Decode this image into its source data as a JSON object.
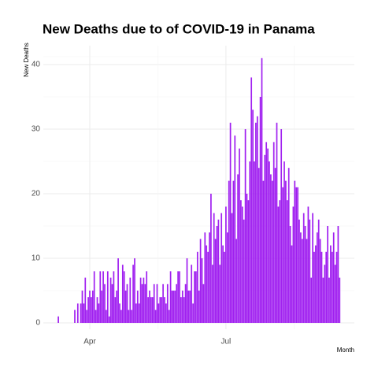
{
  "chart_data": {
    "type": "bar",
    "title": "New Deaths due to of COVID-19 in Panama",
    "x_label": "Month",
    "y_label": "New Deaths",
    "color": "#a020f0",
    "grid": true,
    "ylim": [
      0,
      40
    ],
    "yticks": [
      0,
      10,
      20,
      30,
      40
    ],
    "categories": [
      null,
      null,
      null,
      null,
      null,
      null,
      null,
      null,
      null,
      null,
      null,
      null,
      null,
      null,
      null,
      null,
      null,
      null,
      null,
      null,
      null,
      null,
      "Apr",
      null,
      null,
      null,
      null,
      null,
      null,
      null,
      null,
      null,
      null,
      null,
      null,
      null,
      null,
      null,
      null,
      null,
      null,
      null,
      null,
      null,
      null,
      null,
      null,
      null,
      null,
      null,
      null,
      null,
      null,
      null,
      null,
      null,
      null,
      null,
      null,
      null,
      null,
      null,
      null,
      null,
      null,
      null,
      null,
      null,
      null,
      null,
      null,
      null,
      null,
      null,
      null,
      null,
      null,
      null,
      null,
      null,
      null,
      null,
      null,
      null,
      null,
      null,
      null,
      null,
      null,
      null,
      null,
      null,
      null,
      null,
      null,
      null,
      null,
      null,
      null,
      null,
      null,
      null,
      null,
      null,
      null,
      null,
      null,
      null,
      null,
      null,
      null,
      null,
      null,
      "Jul",
      null,
      null,
      null,
      null,
      null,
      null,
      null,
      null,
      null,
      null,
      null,
      null,
      null,
      null,
      null,
      null,
      null,
      null,
      null,
      null,
      null,
      null,
      null,
      null,
      null,
      null,
      null,
      null,
      null,
      null,
      null,
      null,
      null,
      null,
      null,
      null,
      null,
      null,
      null,
      null,
      null,
      null,
      null,
      null,
      null,
      null,
      null,
      null,
      null,
      null,
      null,
      null,
      null,
      null,
      null,
      null,
      null,
      null,
      null,
      null,
      null,
      null,
      null,
      null,
      null,
      null,
      null,
      null,
      null,
      null,
      null,
      null,
      null,
      null,
      null,
      null
    ],
    "values": [
      0,
      1,
      0,
      0,
      0,
      0,
      0,
      0,
      0,
      0,
      0,
      0,
      2,
      0,
      3,
      0,
      3,
      5,
      3,
      7,
      2,
      4,
      5,
      4,
      5,
      8,
      2,
      4,
      3,
      8,
      5,
      8,
      6,
      2,
      8,
      1,
      7,
      6,
      8,
      4,
      5,
      10,
      3,
      2,
      9,
      8,
      5,
      6,
      2,
      7,
      2,
      9,
      10,
      3,
      5,
      3,
      7,
      6,
      7,
      6,
      8,
      4,
      5,
      4,
      4,
      6,
      2,
      6,
      3,
      4,
      4,
      6,
      4,
      3,
      6,
      2,
      8,
      5,
      5,
      5,
      6,
      8,
      8,
      4,
      5,
      4,
      6,
      10,
      5,
      5,
      9,
      3,
      8,
      8,
      11,
      5,
      13,
      10,
      6,
      14,
      12,
      11,
      14,
      20,
      9,
      17,
      13,
      15,
      16,
      9,
      17,
      12,
      11,
      18,
      14,
      22,
      31,
      17,
      22,
      29,
      13,
      23,
      27,
      19,
      18,
      16,
      30,
      20,
      19,
      25,
      38,
      33,
      25,
      31,
      32,
      24,
      35,
      41,
      22,
      26,
      28,
      27,
      25,
      23,
      22,
      28,
      24,
      31,
      18,
      19,
      30,
      21,
      25,
      22,
      19,
      24,
      15,
      12,
      18,
      22,
      21,
      21,
      16,
      14,
      13,
      17,
      15,
      13,
      18,
      16,
      7,
      17,
      11,
      12,
      14,
      16,
      13,
      11,
      7,
      9,
      11,
      15,
      7,
      12,
      11,
      14,
      9,
      11,
      15,
      7
    ]
  }
}
